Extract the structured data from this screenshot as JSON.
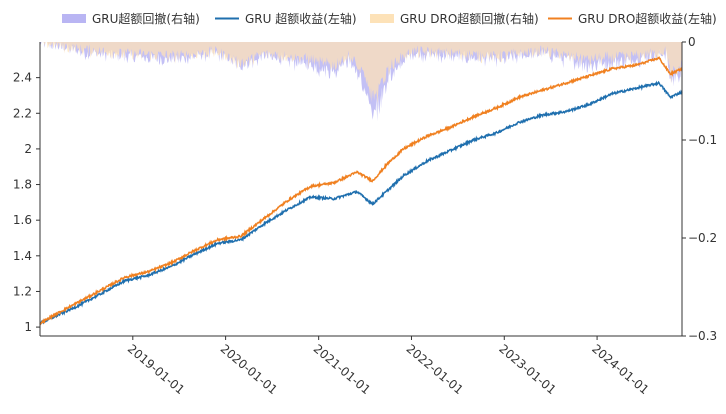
{
  "chart_data": {
    "type": "line",
    "legend_position": "top",
    "legend": [
      {
        "label": "GRU超额回撤(右轴)",
        "kind": "area",
        "color": "#b9b5f3"
      },
      {
        "label": "GRU 超额收益(左轴)",
        "kind": "line",
        "color": "#1f6fae"
      },
      {
        "label": "GRU DRO超额回撤(右轴)",
        "kind": "area",
        "color": "#fde2b8"
      },
      {
        "label": "GRU DRO超额收益(左轴)",
        "kind": "line",
        "color": "#f08020"
      }
    ],
    "x_start": "2018-01-01",
    "x_end": "2024-11-30",
    "x_ticks": [
      "2019-01-01",
      "2020-01-01",
      "2021-01-01",
      "2022-01-01",
      "2023-01-01",
      "2024-01-01"
    ],
    "left_axis": {
      "ylim": [
        0.95,
        2.6
      ],
      "ticks": [
        "1",
        "1.2",
        "1.4",
        "1.6",
        "1.8",
        "2",
        "2.2",
        "2.4"
      ]
    },
    "right_axis": {
      "ylim": [
        -0.3,
        0
      ],
      "ticks": [
        "0",
        "−0.1",
        "−0.2",
        "−0.3"
      ]
    },
    "series": [
      {
        "name": "GRU 超额收益(左轴)",
        "axis": "left",
        "color": "#1f6fae",
        "x": [
          "2018-01-01",
          "2018-03-01",
          "2018-06-01",
          "2018-09-01",
          "2018-12-01",
          "2019-03-01",
          "2019-06-01",
          "2019-09-01",
          "2019-12-01",
          "2020-03-01",
          "2020-06-01",
          "2020-09-01",
          "2020-12-01",
          "2021-03-01",
          "2021-06-01",
          "2021-08-01",
          "2021-10-01",
          "2021-12-01",
          "2022-03-01",
          "2022-06-01",
          "2022-09-01",
          "2022-12-01",
          "2023-03-01",
          "2023-06-01",
          "2023-09-01",
          "2023-12-01",
          "2024-03-01",
          "2024-06-01",
          "2024-09-01",
          "2024-10-15",
          "2024-11-30"
        ],
        "y": [
          1.02,
          1.06,
          1.12,
          1.19,
          1.26,
          1.29,
          1.34,
          1.41,
          1.47,
          1.49,
          1.58,
          1.66,
          1.73,
          1.72,
          1.76,
          1.69,
          1.77,
          1.85,
          1.93,
          1.99,
          2.05,
          2.09,
          2.15,
          2.19,
          2.21,
          2.25,
          2.31,
          2.34,
          2.37,
          2.29,
          2.32
        ]
      },
      {
        "name": "GRU DRO超额收益(左轴)",
        "axis": "left",
        "color": "#f08020",
        "x": [
          "2018-01-01",
          "2018-03-01",
          "2018-06-01",
          "2018-09-01",
          "2018-12-01",
          "2019-03-01",
          "2019-06-01",
          "2019-09-01",
          "2019-12-01",
          "2020-03-01",
          "2020-06-01",
          "2020-09-01",
          "2020-12-01",
          "2021-03-01",
          "2021-06-01",
          "2021-08-01",
          "2021-10-01",
          "2021-12-01",
          "2022-03-01",
          "2022-06-01",
          "2022-09-01",
          "2022-12-01",
          "2023-03-01",
          "2023-06-01",
          "2023-09-01",
          "2023-12-01",
          "2024-03-01",
          "2024-06-01",
          "2024-09-01",
          "2024-10-15",
          "2024-11-30"
        ],
        "y": [
          1.02,
          1.07,
          1.14,
          1.21,
          1.28,
          1.31,
          1.36,
          1.43,
          1.49,
          1.51,
          1.61,
          1.71,
          1.79,
          1.81,
          1.87,
          1.82,
          1.92,
          2.0,
          2.07,
          2.12,
          2.18,
          2.23,
          2.29,
          2.33,
          2.37,
          2.41,
          2.45,
          2.47,
          2.51,
          2.42,
          2.45
        ]
      },
      {
        "name": "GRU超额回撤(右轴)",
        "axis": "right",
        "color": "#b9b5f3",
        "x": [
          "2018-01-01",
          "2018-06-01",
          "2018-12-01",
          "2019-06-01",
          "2019-12-01",
          "2020-03-01",
          "2020-06-01",
          "2020-12-01",
          "2021-03-01",
          "2021-05-01",
          "2021-07-01",
          "2021-08-01",
          "2021-10-01",
          "2022-01-01",
          "2022-06-01",
          "2022-12-01",
          "2023-06-01",
          "2023-12-01",
          "2024-06-01",
          "2024-10-01",
          "2024-10-15",
          "2024-11-30"
        ],
        "y": [
          0,
          -0.008,
          -0.012,
          -0.015,
          -0.01,
          -0.02,
          -0.012,
          -0.02,
          -0.025,
          -0.015,
          -0.04,
          -0.068,
          -0.03,
          -0.01,
          -0.012,
          -0.015,
          -0.01,
          -0.02,
          -0.015,
          -0.01,
          -0.035,
          -0.025
        ]
      },
      {
        "name": "GRU DRO超额回撤(右轴)",
        "axis": "right",
        "color": "#fde2b8",
        "x": [
          "2018-01-01",
          "2018-06-01",
          "2018-12-01",
          "2019-06-01",
          "2019-12-01",
          "2020-03-01",
          "2020-06-01",
          "2020-12-01",
          "2021-03-01",
          "2021-05-01",
          "2021-07-01",
          "2021-08-01",
          "2021-10-01",
          "2022-01-01",
          "2022-06-01",
          "2022-12-01",
          "2023-06-01",
          "2023-12-01",
          "2024-06-01",
          "2024-10-01",
          "2024-10-15",
          "2024-11-30"
        ],
        "y": [
          0,
          -0.006,
          -0.01,
          -0.012,
          -0.008,
          -0.018,
          -0.01,
          -0.015,
          -0.02,
          -0.012,
          -0.03,
          -0.05,
          -0.022,
          -0.008,
          -0.01,
          -0.012,
          -0.008,
          -0.015,
          -0.012,
          -0.008,
          -0.03,
          -0.02
        ]
      }
    ]
  }
}
